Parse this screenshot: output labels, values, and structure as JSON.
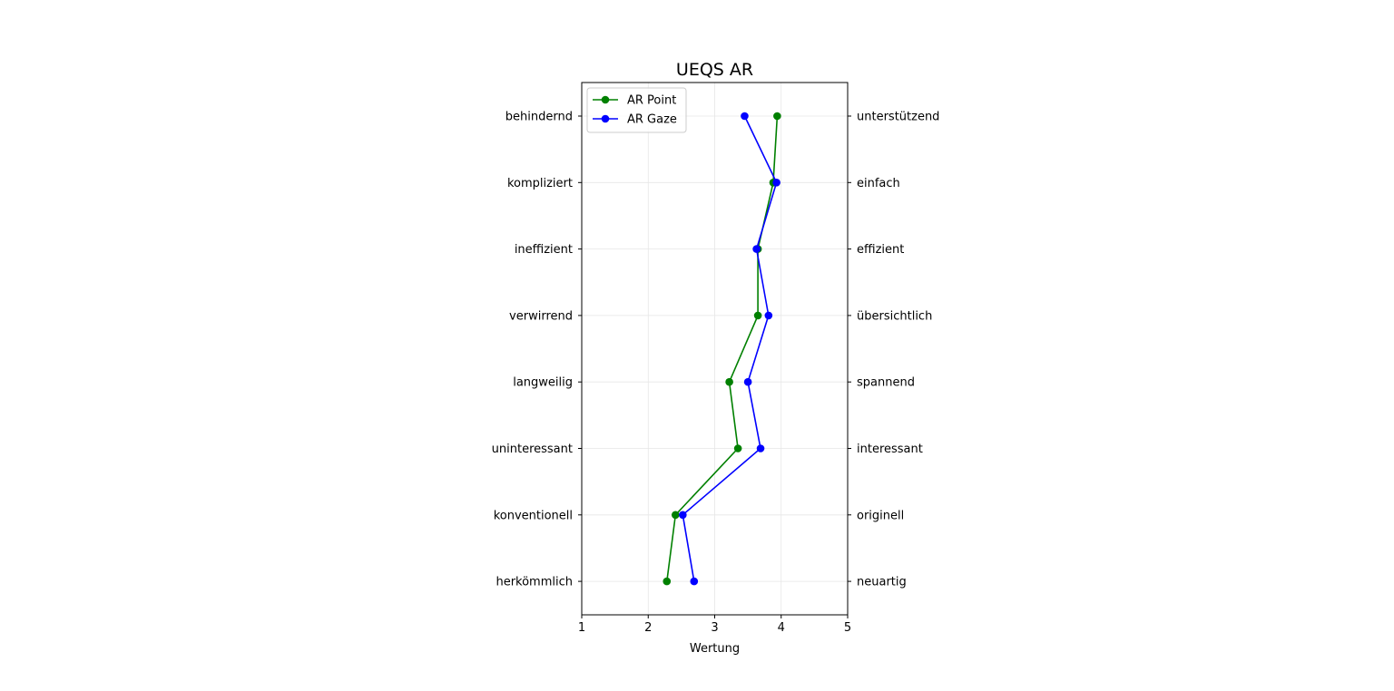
{
  "chart_data": {
    "type": "line",
    "orientation": "horizontal",
    "title": "UEQS AR",
    "xlabel": "Wertung",
    "xlim": [
      1,
      5
    ],
    "xticks": [
      "1",
      "2",
      "3",
      "4",
      "5"
    ],
    "left_labels": [
      "behindernd",
      "kompliziert",
      "ineffizient",
      "verwirrend",
      "langweilig",
      "uninteressant",
      "konventionell",
      "herkömmlich"
    ],
    "right_labels": [
      "unterstützend",
      "einfach",
      "effizient",
      "übersichtlich",
      "spannend",
      "interessant",
      "originell",
      "neuartig"
    ],
    "grid": true,
    "legend_position": "upper-left",
    "series": [
      {
        "name": "AR Point",
        "color": "#008000",
        "values": [
          3.94,
          3.88,
          3.65,
          3.65,
          3.22,
          3.35,
          2.41,
          2.28
        ]
      },
      {
        "name": "AR Gaze",
        "color": "#0000ff",
        "values": [
          3.45,
          3.93,
          3.63,
          3.81,
          3.5,
          3.69,
          2.52,
          2.69
        ]
      }
    ]
  }
}
